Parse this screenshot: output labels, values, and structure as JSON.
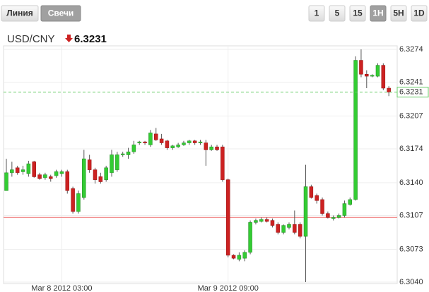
{
  "chart_types": [
    "Линия",
    "Свечи"
  ],
  "active_chart_type": "Свечи",
  "intervals": [
    "1",
    "5",
    "15",
    "1H",
    "5H",
    "1D"
  ],
  "active_interval": "1H",
  "chart_data": {
    "type": "candlestick",
    "symbol": "USD/CNY",
    "last_price": 6.3231,
    "direction": "down",
    "reference_line": 6.3105,
    "up_color": "#33cc33",
    "down_color": "#cc2222",
    "ylim": [
      6.304,
      6.3274
    ],
    "yticks": [
      {
        "value": 6.304,
        "label": "6.3040"
      },
      6.3073,
      6.3107,
      {
        "value": 6.314,
        "label": "6.3140"
      },
      6.3174,
      6.3207,
      6.3241,
      6.3274
    ],
    "grid": true,
    "categories": [
      null,
      null,
      null,
      null,
      null,
      null,
      null,
      null,
      null,
      null,
      "Mar 8 2012 03:00",
      null,
      null,
      null,
      null,
      null,
      null,
      null,
      null,
      null,
      null,
      null,
      null,
      null,
      null,
      null,
      null,
      null,
      null,
      null,
      null,
      null,
      null,
      null,
      null,
      null,
      null,
      null,
      null,
      null,
      "Mar 9 2012 09:00",
      null,
      null,
      null,
      null,
      null,
      null,
      null,
      null,
      null,
      null,
      null,
      null,
      null,
      null,
      null,
      null,
      null,
      null,
      null,
      null,
      null,
      null,
      null,
      null,
      null,
      null,
      null,
      null,
      null
    ],
    "open": [
      6.3132,
      6.315,
      6.3155,
      6.3151,
      6.3149,
      6.3161,
      6.3148,
      6.3145,
      6.3146,
      6.3147,
      6.3149,
      6.3151,
      6.3134,
      6.3111,
      6.3125,
      6.3163,
      6.3153,
      6.3146,
      6.3143,
      6.315,
      6.3153,
      6.3168,
      6.3168,
      6.3171,
      6.318,
      6.3181,
      6.3178,
      6.3189,
      6.3184,
      6.3182,
      6.3175,
      6.3176,
      6.3178,
      6.318,
      6.3182,
      6.318,
      6.318,
      6.3173,
      6.3176,
      6.3176,
      6.3143,
      6.3067,
      6.3063,
      6.3064,
      6.307,
      6.31,
      6.3101,
      6.3103,
      6.3102,
      6.3098,
      6.309,
      6.3095,
      6.3098,
      6.3098,
      6.3086,
      6.3136,
      6.3127,
      6.3123,
      6.3109,
      6.3104,
      6.3105,
      6.3107,
      6.3118,
      6.3123,
      6.3263,
      6.3249,
      6.3247,
      6.3247,
      6.3258,
      6.3235
    ],
    "high": [
      6.3164,
      6.3161,
      6.3157,
      6.3157,
      6.3162,
      6.3162,
      6.315,
      6.315,
      6.3148,
      6.3153,
      6.3153,
      6.3153,
      6.3136,
      6.3132,
      6.3173,
      6.3168,
      6.3155,
      6.315,
      6.3157,
      6.3173,
      6.3171,
      6.3171,
      6.3175,
      6.3182,
      6.3182,
      6.3182,
      6.3193,
      6.3195,
      6.3189,
      6.3183,
      6.3178,
      6.318,
      6.3182,
      6.3183,
      6.3183,
      6.3183,
      6.3183,
      6.3178,
      6.3178,
      6.3178,
      6.3144,
      6.3068,
      6.307,
      6.3072,
      6.3102,
      6.3104,
      6.3105,
      6.3105,
      6.3104,
      6.31,
      6.3098,
      6.31,
      6.3112,
      6.31,
      6.3158,
      6.3138,
      6.3129,
      6.3125,
      6.3111,
      6.3107,
      6.3109,
      6.3122,
      6.3125,
      6.3267,
      6.3274,
      6.3253,
      6.3249,
      6.326,
      6.326,
      6.3237
    ],
    "low": [
      6.3132,
      6.3146,
      6.3148,
      6.3148,
      6.3146,
      6.3145,
      6.3143,
      6.3143,
      6.3141,
      6.3145,
      6.3146,
      6.3129,
      6.3109,
      6.3109,
      6.3123,
      6.315,
      6.3139,
      6.3139,
      6.3141,
      6.3146,
      6.3151,
      6.3166,
      6.3164,
      6.3169,
      6.3178,
      6.3178,
      6.3176,
      6.3182,
      6.3178,
      6.3173,
      6.3173,
      6.3175,
      6.3177,
      6.3178,
      6.3178,
      6.3178,
      6.3157,
      6.3172,
      6.3172,
      6.3141,
      6.3065,
      6.3063,
      6.3061,
      6.3061,
      6.3068,
      6.3098,
      6.31,
      6.31,
      6.3095,
      6.3088,
      6.3088,
      6.3093,
      6.3088,
      6.3084,
      6.304,
      6.3124,
      6.3119,
      6.3107,
      6.3104,
      6.3102,
      6.3104,
      6.3105,
      6.3117,
      6.3122,
      6.3246,
      6.3235,
      6.3246,
      6.3246,
      6.3233,
      6.3227
    ],
    "close": [
      6.315,
      6.3153,
      6.315,
      6.3153,
      6.3159,
      6.3146,
      6.3144,
      6.3148,
      6.3144,
      6.3151,
      6.3151,
      6.3132,
      6.3111,
      6.3129,
      6.3164,
      6.3153,
      6.3143,
      6.3141,
      6.3155,
      6.3168,
      6.3168,
      6.3169,
      6.3171,
      6.3178,
      6.3181,
      6.318,
      6.319,
      6.3183,
      6.318,
      6.3175,
      6.3177,
      6.3178,
      6.318,
      6.3182,
      6.318,
      6.3181,
      6.3173,
      6.3176,
      6.3173,
      6.3143,
      6.3067,
      6.3064,
      6.3067,
      6.307,
      6.31,
      6.3102,
      6.3103,
      6.3101,
      6.3097,
      6.309,
      6.3097,
      6.3098,
      6.309,
      6.3086,
      6.3136,
      6.3125,
      6.3122,
      6.3109,
      6.3105,
      6.3105,
      6.3107,
      6.3119,
      6.3123,
      6.3263,
      6.3249,
      6.3247,
      6.3248,
      6.3258,
      6.3235,
      6.3231
    ]
  }
}
